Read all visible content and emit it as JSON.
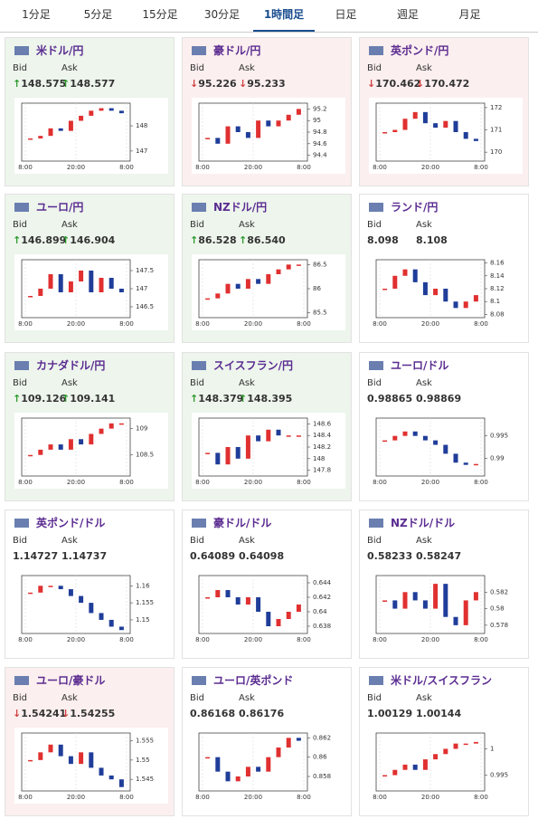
{
  "tabs": [
    "1分足",
    "5分足",
    "15分足",
    "30分足",
    "1時間足",
    "日足",
    "週足",
    "月足"
  ],
  "active_tab": 4,
  "labels": {
    "bid": "Bid",
    "ask": "Ask"
  },
  "x_labels": [
    "8:00",
    "20:00",
    "8:00"
  ],
  "cards": [
    {
      "name": "米ドル/円",
      "direction": "↑",
      "bid": "148.575",
      "ask": "148.577",
      "ylim": [
        146.6,
        148.9
      ],
      "yticks": [
        148,
        147
      ],
      "closes": [
        147.5,
        147.6,
        147.9,
        147.8,
        148.2,
        148.4,
        148.6,
        148.7,
        148.6,
        148.5
      ]
    },
    {
      "name": "豪ドル/円",
      "direction": "↓",
      "bid": "95.226",
      "ask": "95.233",
      "ylim": [
        94.3,
        95.3
      ],
      "yticks": [
        95.2,
        95,
        94.8,
        94.6,
        94.4
      ],
      "closes": [
        94.7,
        94.6,
        94.9,
        94.8,
        94.7,
        95.0,
        94.9,
        95.0,
        95.1,
        95.2
      ]
    },
    {
      "name": "英ポンド/円",
      "direction": "↓",
      "bid": "170.462",
      "ask": "170.472",
      "ylim": [
        169.6,
        172.2
      ],
      "yticks": [
        172,
        171,
        170
      ],
      "closes": [
        170.9,
        171.0,
        171.5,
        171.8,
        171.3,
        171.1,
        171.4,
        170.9,
        170.6,
        170.5
      ]
    },
    {
      "name": "ユーロ/円",
      "direction": "↑",
      "bid": "146.899",
      "ask": "146.904",
      "ylim": [
        146.2,
        147.8
      ],
      "yticks": [
        147.5,
        147,
        146.5
      ],
      "closes": [
        146.8,
        147.0,
        147.4,
        146.9,
        147.2,
        147.5,
        146.9,
        147.3,
        147.0,
        146.9
      ]
    },
    {
      "name": "NZドル/円",
      "direction": "↑",
      "bid": "86.528",
      "ask": "86.540",
      "ylim": [
        85.4,
        86.6
      ],
      "yticks": [
        86.5,
        86,
        85.5
      ],
      "closes": [
        85.8,
        85.9,
        86.1,
        86.0,
        86.2,
        86.1,
        86.3,
        86.4,
        86.5,
        86.5
      ]
    },
    {
      "name": "ランド/円",
      "bid": "8.098",
      "ask": "8.108",
      "ylim": [
        8.075,
        8.165
      ],
      "yticks": [
        8.16,
        8.14,
        8.12,
        8.1,
        8.08
      ],
      "closes": [
        8.12,
        8.14,
        8.15,
        8.13,
        8.11,
        8.12,
        8.1,
        8.09,
        8.1,
        8.11
      ]
    },
    {
      "name": "カナダドル/円",
      "direction": "↑",
      "bid": "109.126",
      "ask": "109.141",
      "ylim": [
        108.1,
        109.2
      ],
      "yticks": [
        109,
        108.5
      ],
      "closes": [
        108.5,
        108.6,
        108.7,
        108.6,
        108.8,
        108.7,
        108.9,
        109.0,
        109.1,
        109.1
      ]
    },
    {
      "name": "スイスフラン/円",
      "direction": "↑",
      "bid": "148.379",
      "ask": "148.395",
      "ylim": [
        147.7,
        148.7
      ],
      "yticks": [
        148.6,
        148.4,
        148.2,
        148,
        147.8
      ],
      "closes": [
        148.1,
        147.9,
        148.2,
        148.0,
        148.4,
        148.3,
        148.5,
        148.4,
        148.4,
        148.4
      ]
    },
    {
      "name": "ユーロ/ドル",
      "bid": "0.98865",
      "ask": "0.98869",
      "ylim": [
        0.986,
        0.999
      ],
      "yticks": [
        0.995,
        0.99
      ],
      "closes": [
        0.994,
        0.995,
        0.996,
        0.995,
        0.994,
        0.993,
        0.991,
        0.989,
        0.9885,
        0.9887
      ]
    },
    {
      "name": "英ポンド/ドル",
      "bid": "1.14727",
      "ask": "1.14737",
      "ylim": [
        1.146,
        1.163
      ],
      "yticks": [
        1.16,
        1.155,
        1.15
      ],
      "closes": [
        1.158,
        1.16,
        1.16,
        1.159,
        1.157,
        1.155,
        1.152,
        1.15,
        1.148,
        1.147
      ]
    },
    {
      "name": "豪ドル/ドル",
      "bid": "0.64089",
      "ask": "0.64098",
      "ylim": [
        0.637,
        0.645
      ],
      "yticks": [
        0.644,
        0.642,
        0.64,
        0.638
      ],
      "closes": [
        0.642,
        0.643,
        0.642,
        0.641,
        0.642,
        0.64,
        0.638,
        0.639,
        0.64,
        0.641
      ]
    },
    {
      "name": "NZドル/ドル",
      "bid": "0.58233",
      "ask": "0.58247",
      "ylim": [
        0.577,
        0.584
      ],
      "yticks": [
        0.582,
        0.58,
        0.578
      ],
      "closes": [
        0.581,
        0.58,
        0.582,
        0.581,
        0.58,
        0.583,
        0.579,
        0.578,
        0.581,
        0.582
      ]
    },
    {
      "name": "ユーロ/豪ドル",
      "direction": "↓",
      "bid": "1.54241",
      "ask": "1.54255",
      "ylim": [
        1.542,
        1.557
      ],
      "yticks": [
        1.555,
        1.55,
        1.545
      ],
      "closes": [
        1.55,
        1.552,
        1.554,
        1.551,
        1.549,
        1.552,
        1.548,
        1.546,
        1.545,
        1.543
      ]
    },
    {
      "name": "ユーロ/英ポンド",
      "bid": "0.86168",
      "ask": "0.86176",
      "ylim": [
        0.8565,
        0.8625
      ],
      "yticks": [
        0.862,
        0.86,
        0.858
      ],
      "closes": [
        0.86,
        0.8585,
        0.8575,
        0.858,
        0.859,
        0.8585,
        0.86,
        0.861,
        0.862,
        0.8617
      ]
    },
    {
      "name": "米ドル/スイスフラン",
      "bid": "1.00129",
      "ask": "1.00144",
      "ylim": [
        0.992,
        1.003
      ],
      "yticks": [
        1,
        0.995
      ],
      "closes": [
        0.995,
        0.996,
        0.997,
        0.996,
        0.998,
        0.999,
        1.0,
        1.001,
        1.001,
        1.0013
      ]
    }
  ]
}
